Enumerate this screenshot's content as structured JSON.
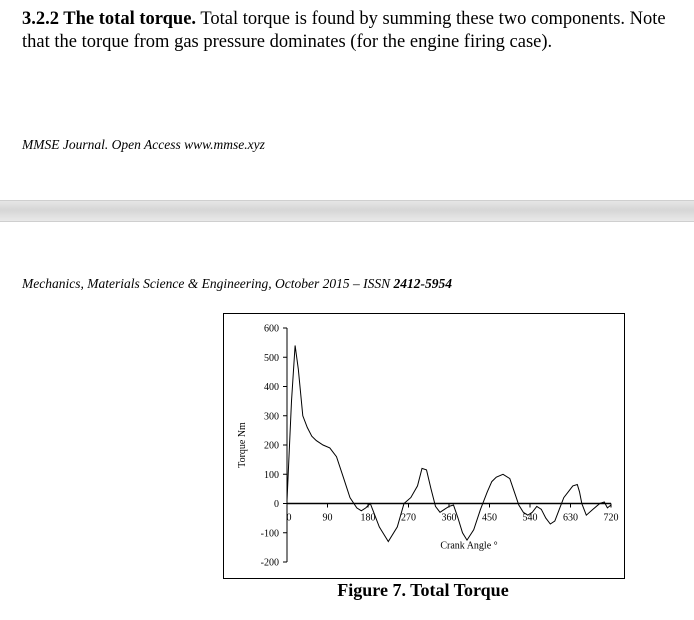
{
  "paragraph": {
    "heading": "3.2.2 The total torque.",
    "body": "Total torque is found by summing these two components. Note that the torque from gas pressure dominates (for the engine firing case)."
  },
  "footer_journal": "MMSE Journal. Open Access www.mmse.xyz",
  "header_journal": {
    "text": "Mechanics, Materials Science & Engineering, October 2015 – ISSN ",
    "issn": "2412-5954"
  },
  "figure_caption": "Figure 7. Total Torque",
  "chart_data": {
    "type": "line",
    "title": "",
    "xlabel": "Crank Angle °",
    "ylabel": "Torque Nm",
    "xlim": [
      0,
      720
    ],
    "ylim": [
      -200,
      600
    ],
    "x_ticks": [
      0,
      90,
      180,
      270,
      360,
      450,
      540,
      630,
      720
    ],
    "x_tick_labels": [
      "0",
      "90",
      "180",
      "270",
      "360",
      "450",
      "540",
      "630",
      "720"
    ],
    "y_ticks": [
      600,
      500,
      400,
      300,
      200,
      100,
      0,
      -100,
      -200
    ],
    "grid": false,
    "line_color": "#000000",
    "series": [
      {
        "x": [
          0,
          10,
          18,
          25,
          35,
          45,
          55,
          65,
          80,
          95,
          110,
          125,
          140,
          155,
          165,
          175,
          185,
          205,
          225,
          245,
          260,
          275,
          290,
          300,
          310,
          320,
          330,
          340,
          350,
          360,
          370,
          380,
          390,
          400,
          415,
          430,
          445,
          455,
          465,
          480,
          495,
          505,
          515,
          525,
          535,
          545,
          555,
          565,
          575,
          585,
          595,
          605,
          615,
          625,
          635,
          645,
          650,
          655,
          665,
          680,
          695,
          705,
          712,
          720
        ],
        "y": [
          10,
          350,
          540,
          460,
          300,
          260,
          230,
          215,
          200,
          190,
          160,
          90,
          20,
          -15,
          -25,
          -15,
          0,
          -80,
          -130,
          -80,
          0,
          20,
          60,
          120,
          115,
          50,
          -10,
          -30,
          -20,
          -10,
          -5,
          -50,
          -100,
          -125,
          -90,
          -20,
          40,
          75,
          90,
          100,
          85,
          40,
          -5,
          -30,
          -40,
          -30,
          -10,
          -20,
          -50,
          -70,
          -60,
          -20,
          20,
          40,
          60,
          65,
          40,
          0,
          -40,
          -20,
          0,
          5,
          -15,
          -5
        ]
      }
    ]
  }
}
